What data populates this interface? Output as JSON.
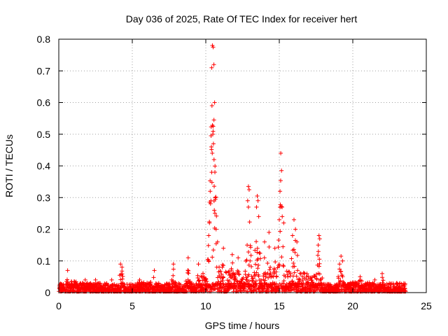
{
  "chart_data": {
    "type": "scatter",
    "title": "Day 036 of 2025, Rate Of TEC Index for receiver hert",
    "xlabel": "GPS time / hours",
    "ylabel": "ROTI / TECUs",
    "xlim": [
      0,
      25
    ],
    "ylim": [
      0,
      0.8
    ],
    "x_ticks": [
      "0",
      "5",
      "10",
      "15",
      "20",
      "25"
    ],
    "y_ticks": [
      "0",
      "0.1",
      "0.2",
      "0.3",
      "0.4",
      "0.5",
      "0.6",
      "0.7",
      "0.8"
    ],
    "grid": true,
    "marker": "plus",
    "color": "#ff0000",
    "x_data_range": [
      0,
      23.6
    ],
    "series": [
      {
        "x": [
          10.45,
          10.5,
          10.55,
          10.4,
          10.6,
          10.42,
          10.5,
          10.48,
          10.52,
          10.38,
          10.44,
          10.56,
          10.3,
          10.62,
          10.35,
          10.58,
          10.25,
          10.7,
          10.2,
          10.8,
          12.9,
          12.95,
          12.85,
          12.9,
          13.5,
          13.55,
          13.45,
          13.6,
          15.1,
          15.15,
          15.05,
          15.2,
          15.0,
          15.3,
          16.0,
          16.1,
          15.9,
          16.2,
          17.7,
          17.75,
          17.65,
          19.2,
          19.3,
          19.1,
          14.0,
          14.3,
          14.7,
          4.2,
          4.3,
          6.5,
          7.8,
          8.8,
          11.2,
          11.8,
          12.2,
          22.0,
          0.6,
          1.8,
          2.5,
          3.6,
          5.5,
          9.5,
          20.5,
          21.5,
          23.0,
          23.5
        ],
        "y": [
          0.78,
          0.775,
          0.72,
          0.71,
          0.6,
          0.59,
          0.525,
          0.5,
          0.47,
          0.46,
          0.44,
          0.42,
          0.32,
          0.38,
          0.29,
          0.26,
          0.22,
          0.2,
          0.18,
          0.16,
          0.335,
          0.325,
          0.29,
          0.27,
          0.305,
          0.29,
          0.27,
          0.24,
          0.44,
          0.385,
          0.32,
          0.24,
          0.23,
          0.22,
          0.23,
          0.2,
          0.18,
          0.16,
          0.18,
          0.17,
          0.15,
          0.115,
          0.1,
          0.09,
          0.16,
          0.19,
          0.14,
          0.09,
          0.08,
          0.07,
          0.09,
          0.11,
          0.14,
          0.12,
          0.11,
          0.06,
          0.07,
          0.04,
          0.04,
          0.04,
          0.04,
          0.09,
          0.05,
          0.04,
          0.03,
          0.02
        ]
      }
    ]
  }
}
